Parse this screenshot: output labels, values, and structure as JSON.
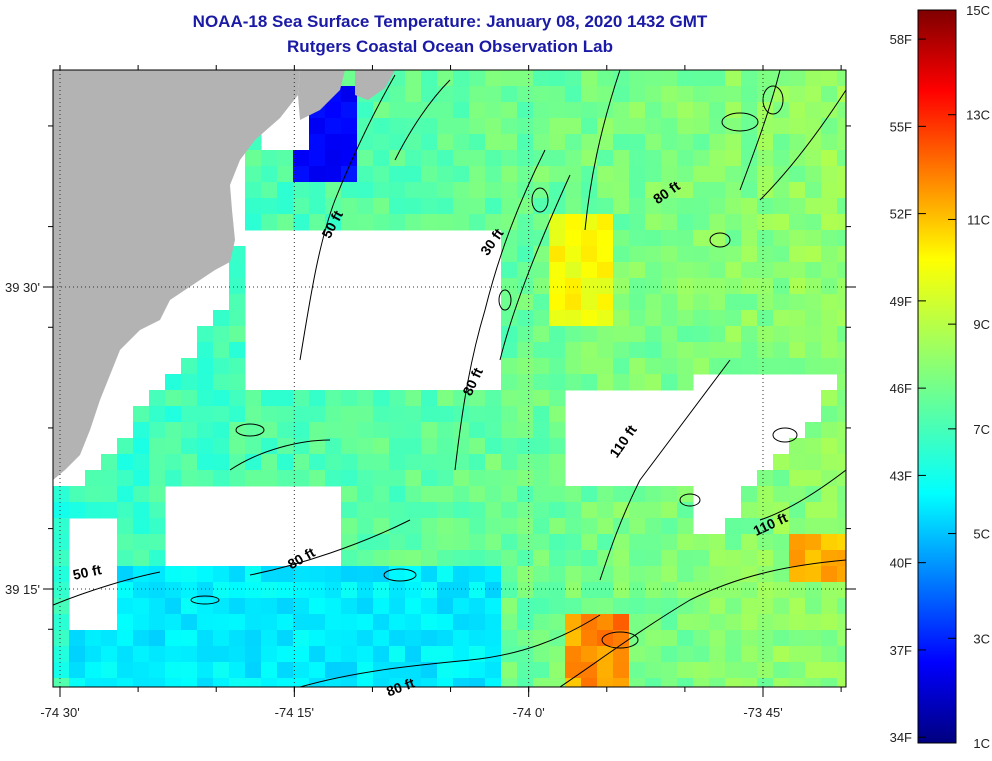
{
  "title": {
    "line1": "NOAA-18 Sea Surface Temperature:  January 08, 2020 1432 GMT",
    "line2": "Rutgers Coastal Ocean Observation Lab"
  },
  "axes": {
    "x_ticks": [
      {
        "value": -74.5,
        "label": "-74 30'"
      },
      {
        "value": -74.25,
        "label": "-74 15'"
      },
      {
        "value": -74.0,
        "label": "-74 0'"
      },
      {
        "value": -73.75,
        "label": "-73 45'"
      }
    ],
    "y_ticks": [
      {
        "value": 39.5,
        "label": "39 30'"
      },
      {
        "value": 39.25,
        "label": "39 15'"
      }
    ]
  },
  "contour_labels": [
    {
      "text": "50 ft",
      "lon": -74.205,
      "lat": 39.55,
      "rot": -62
    },
    {
      "text": "30 ft",
      "lon": -74.035,
      "lat": 39.535,
      "rot": -55
    },
    {
      "text": "80 ft",
      "lon": -73.85,
      "lat": 39.575,
      "rot": -35
    },
    {
      "text": "80 ft",
      "lon": -74.055,
      "lat": 39.42,
      "rot": -65
    },
    {
      "text": "110 ft",
      "lon": -73.895,
      "lat": 39.37,
      "rot": -55
    },
    {
      "text": "110 ft",
      "lon": -73.74,
      "lat": 39.3,
      "rot": -25
    },
    {
      "text": "50 ft",
      "lon": -74.47,
      "lat": 39.26,
      "rot": -12
    },
    {
      "text": "80 ft",
      "lon": -74.24,
      "lat": 39.272,
      "rot": -30
    },
    {
      "text": "80 ft",
      "lon": -74.135,
      "lat": 39.165,
      "rot": -20
    }
  ],
  "colorbar": {
    "left_labels": [
      "58F",
      "55F",
      "52F",
      "49F",
      "46F",
      "43F",
      "40F",
      "37F",
      "34F"
    ],
    "right_labels": [
      "15C",
      "13C",
      "11C",
      "9C",
      "7C",
      "5C",
      "3C",
      "1C"
    ],
    "min_c": 1,
    "max_c": 15
  },
  "colors": {
    "land": "#b3b3b3",
    "title": "#1a1aa6",
    "frame": "#000000"
  }
}
